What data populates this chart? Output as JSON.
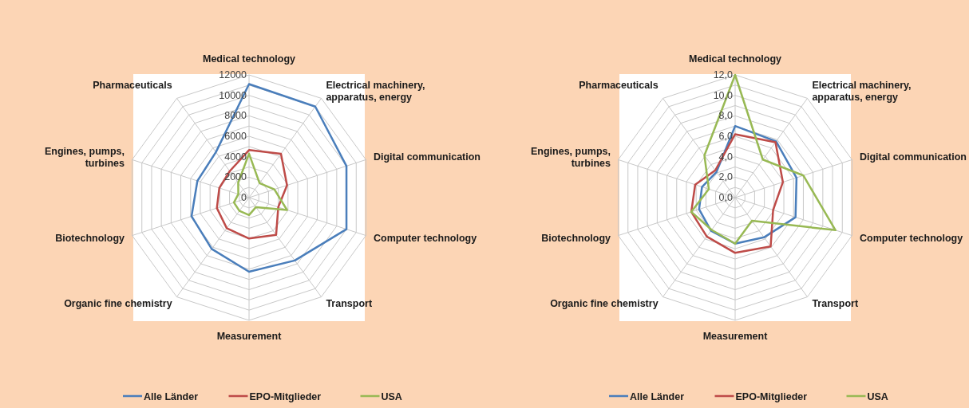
{
  "chart_data": [
    {
      "type": "radar",
      "categories": [
        "Medical technology",
        "Electrical machinery, apparatus, energy",
        "Digital communication",
        "Computer technology",
        "Transport",
        "Measurement",
        "Organic fine chemistry",
        "Biotechnology",
        "Engines, pumps, turbines",
        "Pharmaceuticals"
      ],
      "ylim": [
        0,
        12000
      ],
      "yticks": [
        0,
        2000,
        4000,
        6000,
        8000,
        10000,
        12000
      ],
      "grid": true,
      "legend": "bottom",
      "series": [
        {
          "name": "Alle Länder",
          "color": "#4a7ebb",
          "values": [
            11100,
            11000,
            10000,
            10000,
            7600,
            7250,
            6200,
            5900,
            5300,
            5500
          ]
        },
        {
          "name": "EPO-Mitglieder",
          "color": "#be4b48",
          "values": [
            4650,
            5300,
            3900,
            3000,
            4500,
            4000,
            3700,
            3300,
            3050,
            3200
          ]
        },
        {
          "name": "USA",
          "color": "#98b954",
          "values": [
            4300,
            1750,
            2600,
            3900,
            1150,
            1700,
            1600,
            1550,
            1100,
            1800
          ]
        }
      ]
    },
    {
      "type": "radar",
      "categories": [
        "Medical technology",
        "Electrical machinery, apparatus, energy",
        "Digital communication",
        "Computer technology",
        "Transport",
        "Measurement",
        "Organic fine chemistry",
        "Biotechnology",
        "Engines, pumps, turbines",
        "Pharmaceuticals"
      ],
      "ylim": [
        0,
        12
      ],
      "yticks": [
        {
          "value": 0,
          "label": "0,0"
        },
        {
          "value": 2,
          "label": "2,0"
        },
        {
          "value": 4,
          "label": "4,0"
        },
        {
          "value": 6,
          "label": "6,0"
        },
        {
          "value": 8,
          "label": "8,0"
        },
        {
          "value": 10,
          "label": "10,0"
        },
        {
          "value": 12,
          "label": "12,0"
        }
      ],
      "grid": true,
      "legend": "bottom",
      "series": [
        {
          "name": "Alle Länder",
          "color": "#4a7ebb",
          "values": [
            7.0,
            6.8,
            6.3,
            6.2,
            4.8,
            4.5,
            4.0,
            3.7,
            3.4,
            3.1
          ]
        },
        {
          "name": "EPO-Mitglieder",
          "color": "#be4b48",
          "values": [
            6.2,
            6.7,
            4.9,
            3.9,
            5.9,
            5.4,
            4.7,
            4.5,
            4.1,
            3.3
          ]
        },
        {
          "name": "USA",
          "color": "#98b954",
          "values": [
            12.0,
            4.6,
            7.0,
            10.3,
            2.8,
            4.5,
            3.9,
            4.5,
            2.7,
            5.1
          ]
        }
      ]
    }
  ]
}
